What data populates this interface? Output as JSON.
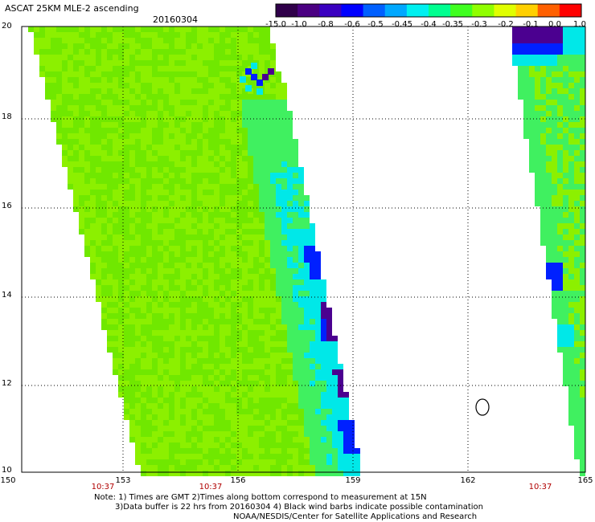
{
  "header": {
    "title": "ASCAT 25KM MLE-2 ascending",
    "date": "20160304"
  },
  "colorbar": {
    "labels": [
      "-15.0",
      "-1.0",
      "-0.8",
      "-0.6",
      "-0.5",
      "-0.45",
      "-0.4",
      "-0.35",
      "-0.3",
      "-0.2",
      "-0.1",
      "0.0",
      "1.0"
    ],
    "colors": [
      "#30004a",
      "#4b0082",
      "#3a00c0",
      "#0000ff",
      "#0060ff",
      "#00a8ff",
      "#00f0f0",
      "#00ff90",
      "#40ff20",
      "#90ff00",
      "#e0ff00",
      "#ffd000",
      "#ff6000",
      "#ff0000"
    ]
  },
  "map": {
    "lat_labels": [
      "20",
      "18",
      "16",
      "14",
      "12",
      "10"
    ],
    "lon_labels": [
      "150",
      "153",
      "156",
      "159",
      "162",
      "165"
    ],
    "time_labels": [
      "10:37",
      "10:37",
      "10:37"
    ],
    "palette": {
      "swath_green": "#8cf000",
      "swath_green_dark": "#70e800",
      "mid_green": "#40f060",
      "cyan": "#00e8e8",
      "blue": "#0020ff",
      "purple": "#4b0090"
    }
  },
  "notes": {
    "line1": "Note: 1) Times are GMT 2)Times along bottom correspond to measurement at 15N",
    "line2": "3)Data buffer is 22 hrs from 20160304 4) Black wind barbs indicate possible contamination",
    "line3": "NOAA/NESDIS/Center for Satellite Applications and Research"
  }
}
